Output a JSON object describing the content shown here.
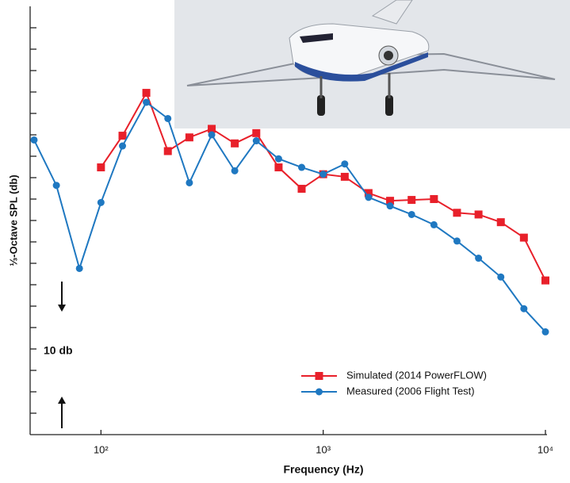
{
  "chart_data": {
    "type": "line",
    "x_label": "Frequency (Hz)",
    "y_label": "⅓-Octave SPL (db)",
    "annotation": "10 db",
    "xlim": [
      48,
      10000
    ],
    "xscale": "log",
    "xticks": [
      {
        "value": 100,
        "label": "10²"
      },
      {
        "value": 1000,
        "label": "10³"
      },
      {
        "value": 10000,
        "label": "10⁴"
      }
    ],
    "ylim": [
      0,
      50
    ],
    "yticks": [
      2.5,
      5,
      7.5,
      10,
      12.5,
      15,
      17.5,
      20,
      22.5,
      25,
      27.5,
      30,
      32.5,
      35,
      37.5,
      40,
      42.5,
      45,
      47.5
    ],
    "legend": "lower right",
    "series": [
      {
        "name": "Simulated (2014 PowerFLOW)",
        "color": "#e8202a",
        "marker": "square",
        "x": [
          100,
          125,
          160,
          200,
          250,
          315,
          400,
          500,
          630,
          800,
          1000,
          1250,
          1600,
          2000,
          2500,
          3150,
          4000,
          5000,
          6300,
          8000,
          10000
        ],
        "values": [
          31.2,
          34.9,
          39.9,
          33.1,
          34.7,
          35.7,
          34.0,
          35.2,
          31.2,
          28.7,
          30.4,
          30.1,
          28.2,
          27.3,
          27.4,
          27.5,
          25.9,
          25.7,
          24.8,
          23.0,
          18.0
        ]
      },
      {
        "name": "Measured (2006 Flight Test)",
        "color": "#1f78c1",
        "marker": "circle",
        "x": [
          50,
          63,
          80,
          100,
          125,
          160,
          200,
          250,
          315,
          400,
          500,
          630,
          800,
          1000,
          1250,
          1600,
          2000,
          2500,
          3150,
          4000,
          5000,
          6300,
          8000,
          10000
        ],
        "values": [
          34.4,
          29.1,
          19.4,
          27.1,
          33.7,
          38.8,
          36.9,
          29.4,
          35.0,
          30.8,
          34.3,
          32.2,
          31.2,
          30.4,
          31.6,
          27.7,
          26.7,
          25.7,
          24.5,
          22.6,
          20.6,
          18.4,
          14.7,
          12.0
        ]
      }
    ]
  }
}
